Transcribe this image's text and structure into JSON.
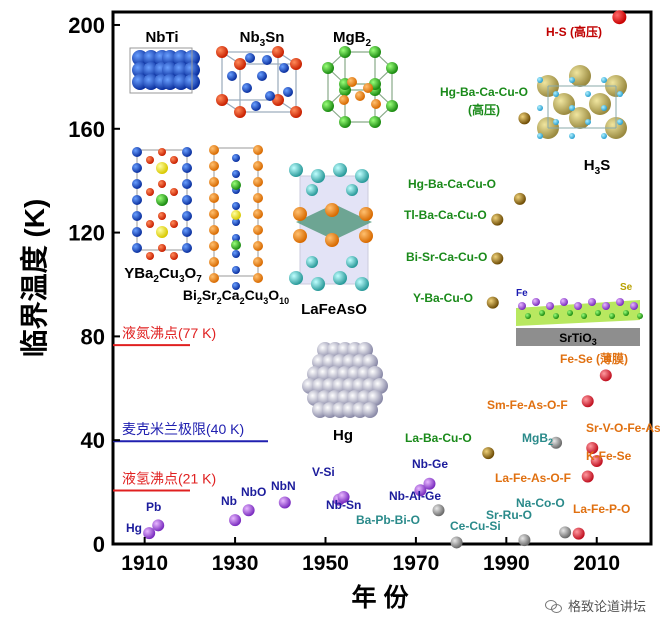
{
  "chart_data": {
    "type": "scatter",
    "xlabel": "年 份",
    "ylabel": "临界温度 (K)",
    "xlim": [
      1903,
      2022
    ],
    "ylim": [
      0,
      205
    ],
    "x_ticks": [
      1910,
      1930,
      1950,
      1970,
      1990,
      2010
    ],
    "y_ticks": [
      0,
      40,
      80,
      120,
      160,
      200
    ],
    "grid": false,
    "colors": {
      "conventional": "#9b4dd6",
      "conventional_label": "#1c1c9c",
      "cuprate": "#b8860b",
      "cuprate_label": "#1a8a1a",
      "iron": "#e8313c",
      "iron_label": "#e07010",
      "other": "#a0a0a0",
      "other_label": "#2a8a8a",
      "hydride": "#e00000",
      "hydride_label": "#c00000"
    },
    "points": [
      {
        "label": "Hg",
        "x": 1911,
        "y": 4.2,
        "group": "conventional"
      },
      {
        "label": "Pb",
        "x": 1913,
        "y": 7.2,
        "group": "conventional"
      },
      {
        "label": "Nb",
        "x": 1930,
        "y": 9.2,
        "group": "conventional"
      },
      {
        "label": "NbO",
        "x": 1933,
        "y": 13,
        "group": "conventional"
      },
      {
        "label": "NbN",
        "x": 1941,
        "y": 16,
        "group": "conventional"
      },
      {
        "label": "V-Si",
        "x": 1953,
        "y": 17.1,
        "group": "conventional"
      },
      {
        "label": "Nb-Sn",
        "x": 1954,
        "y": 18.1,
        "group": "conventional"
      },
      {
        "label": "Nb-Al-Ge",
        "x": 1971,
        "y": 20.7,
        "group": "conventional"
      },
      {
        "label": "Nb-Ge",
        "x": 1973,
        "y": 23.2,
        "group": "conventional"
      },
      {
        "label": "Ba-Pb-Bi-O",
        "x": 1975,
        "y": 13,
        "group": "other"
      },
      {
        "label": "Ce-Cu-Si",
        "x": 1979,
        "y": 0.6,
        "group": "other"
      },
      {
        "label": "La-Ba-Cu-O",
        "x": 1986,
        "y": 35,
        "group": "cuprate"
      },
      {
        "label": "Y-Ba-Cu-O",
        "x": 1987,
        "y": 93,
        "group": "cuprate"
      },
      {
        "label": "Bi-Sr-Ca-Cu-O",
        "x": 1988,
        "y": 110,
        "group": "cuprate"
      },
      {
        "label": "Tl-Ba-Ca-Cu-O",
        "x": 1988,
        "y": 125,
        "group": "cuprate"
      },
      {
        "label": "Hg-Ba-Ca-Cu-O",
        "x": 1993,
        "y": 133,
        "group": "cuprate"
      },
      {
        "label": "Hg-Ba-Ca-Cu-O (高压)",
        "x": 1994,
        "y": 164,
        "group": "cuprate"
      },
      {
        "label": "Sr-Ru-O",
        "x": 1994,
        "y": 1.5,
        "group": "other"
      },
      {
        "label": "MgB2",
        "x": 2001,
        "y": 39,
        "group": "other"
      },
      {
        "label": "Na-Co-O",
        "x": 2003,
        "y": 4.5,
        "group": "other"
      },
      {
        "label": "La-Fe-P-O",
        "x": 2006,
        "y": 4,
        "group": "iron"
      },
      {
        "label": "La-Fe-As-O-F",
        "x": 2008,
        "y": 26,
        "group": "iron"
      },
      {
        "label": "Sm-Fe-As-O-F",
        "x": 2008,
        "y": 55,
        "group": "iron"
      },
      {
        "label": "Sr-V-O-Fe-As",
        "x": 2009,
        "y": 37,
        "group": "iron"
      },
      {
        "label": "K-Fe-Se",
        "x": 2010,
        "y": 32,
        "group": "iron"
      },
      {
        "label": "Fe-Se (薄膜)",
        "x": 2012,
        "y": 65,
        "group": "iron"
      },
      {
        "label": "H-S (高压)",
        "x": 2015,
        "y": 203,
        "group": "hydride"
      }
    ],
    "reference_lines": [
      {
        "label": "液氮沸点(77 K)",
        "y": 77,
        "color": "#e02020"
      },
      {
        "label": "麦克米兰极限(40 K)",
        "y": 40,
        "color": "#2020b0"
      },
      {
        "label": "液氢沸点(21 K)",
        "y": 21,
        "color": "#e02020"
      }
    ],
    "structures": [
      {
        "name": "NbTi"
      },
      {
        "name": "Nb3Sn"
      },
      {
        "name": "MgB2"
      },
      {
        "name": "YBa2Cu3O7"
      },
      {
        "name": "Bi2Sr2Ca2Cu3O10"
      },
      {
        "name": "LaFeAsO"
      },
      {
        "name": "Hg"
      },
      {
        "name": "H3S"
      },
      {
        "name": "SrTiO3"
      }
    ],
    "inset_labels": {
      "fe": "Fe",
      "se": "Se"
    }
  },
  "watermark": {
    "text": "格致论道讲坛",
    "icon": "wechat-icon"
  }
}
